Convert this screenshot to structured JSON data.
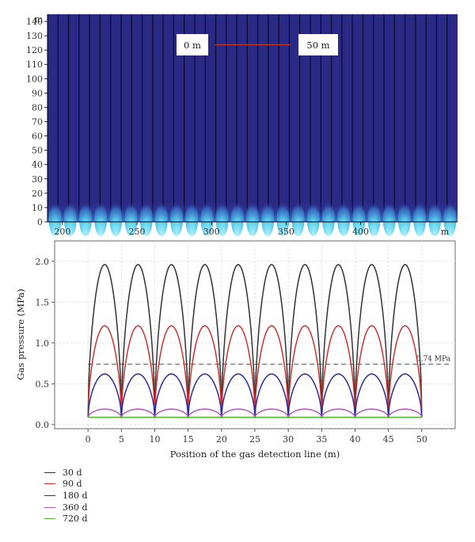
{
  "colors": {
    "map_background": "#2a2a86",
    "map_axis_line": "#000000",
    "map_contour": "#5fd2ee",
    "scale_bar_line": "#c0392b",
    "guide_line": "#555555",
    "grid": "#d9d9d9"
  },
  "chart_data": [
    {
      "type": "heatmap",
      "x_range": [
        190,
        465
      ],
      "y_range": [
        0,
        145
      ],
      "x_ticks": [
        200,
        250,
        300,
        350,
        400
      ],
      "y_ticks": [
        0,
        10,
        20,
        30,
        40,
        50,
        60,
        70,
        80,
        90,
        100,
        110,
        120,
        130,
        140
      ],
      "x_unit_label": "m",
      "y_unit_label": "m",
      "scale_bar": {
        "left_label": "0 m",
        "right_label": "50 m"
      },
      "line_count": 39,
      "hotspot_count": 27
    },
    {
      "type": "line",
      "xlabel": "Position of the gas detection line (m)",
      "ylabel": "Gas pressure (MPa)",
      "xlim": [
        -5,
        55
      ],
      "ylim": [
        -0.05,
        2.25
      ],
      "x_ticks": [
        0,
        5,
        10,
        15,
        20,
        25,
        30,
        35,
        40,
        45,
        50
      ],
      "y_ticks": [
        "0.0",
        "0.5",
        "1.0",
        "1.5",
        "2.0"
      ],
      "grid": true,
      "period": 5,
      "base_value": 0.09,
      "reference_line": {
        "y": 0.74,
        "label": "0.74 MPa"
      },
      "series": [
        {
          "name": "30 d",
          "peak": 1.96,
          "color": "#333333"
        },
        {
          "name": "90 d",
          "peak": 1.21,
          "color": "#d0312d"
        },
        {
          "name": "180 d",
          "peak": 0.62,
          "color": "#2c2b9e"
        },
        {
          "name": "360 d",
          "peak": 0.19,
          "color": "#b05ab5"
        },
        {
          "name": "720 d",
          "peak": 0.09,
          "color": "#4caf2a"
        }
      ]
    }
  ]
}
